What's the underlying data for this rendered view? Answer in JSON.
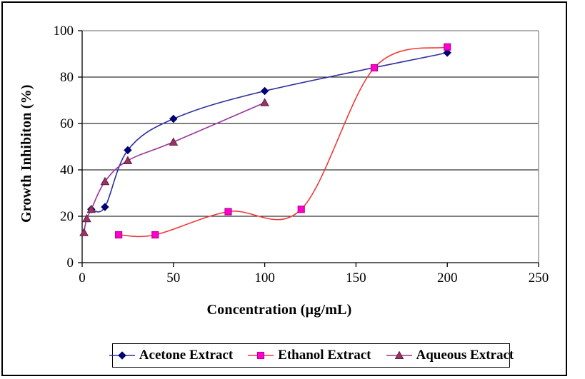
{
  "chart_data": {
    "type": "line",
    "title": "",
    "xlabel": "Concentration (µg/mL)",
    "ylabel": "Growth Inhibiton (%)",
    "xlim": [
      0,
      250
    ],
    "ylim": [
      0,
      100
    ],
    "x_ticks": [
      0,
      50,
      100,
      150,
      200,
      250
    ],
    "y_ticks": [
      0,
      20,
      40,
      60,
      80,
      100
    ],
    "grid": "horizontal-black-gridlines",
    "plot_border_color": "#808080",
    "gridline_color": "#000000",
    "axis_color": "#000000",
    "legend_position": "bottom-outside",
    "smoothed_lines": true,
    "series": [
      {
        "name": "Acetone Extract",
        "marker": "diamond",
        "line_color": "#2E2E9E",
        "marker_fill": "#000080",
        "marker_stroke": "#000060",
        "points": [
          [
            5,
            23
          ],
          [
            12.5,
            24
          ],
          [
            25,
            48.5
          ],
          [
            50,
            62
          ],
          [
            100,
            74
          ],
          [
            200,
            90.5
          ]
        ]
      },
      {
        "name": "Ethanol Extract",
        "marker": "square",
        "line_color": "#EE3A3A",
        "marker_fill": "#FF00CC",
        "marker_stroke": "#BF0099",
        "points": [
          [
            20,
            12
          ],
          [
            40,
            12
          ],
          [
            80,
            22
          ],
          [
            120,
            23
          ],
          [
            160,
            84
          ],
          [
            200,
            93
          ]
        ]
      },
      {
        "name": "Aqueous Extract",
        "marker": "triangle",
        "line_color": "#993399",
        "marker_fill": "#993366",
        "marker_stroke": "#5E2040",
        "points": [
          [
            1,
            13
          ],
          [
            2.5,
            19
          ],
          [
            5,
            23
          ],
          [
            12.5,
            35
          ],
          [
            25,
            44
          ],
          [
            50,
            52
          ],
          [
            100,
            69
          ]
        ]
      }
    ]
  }
}
